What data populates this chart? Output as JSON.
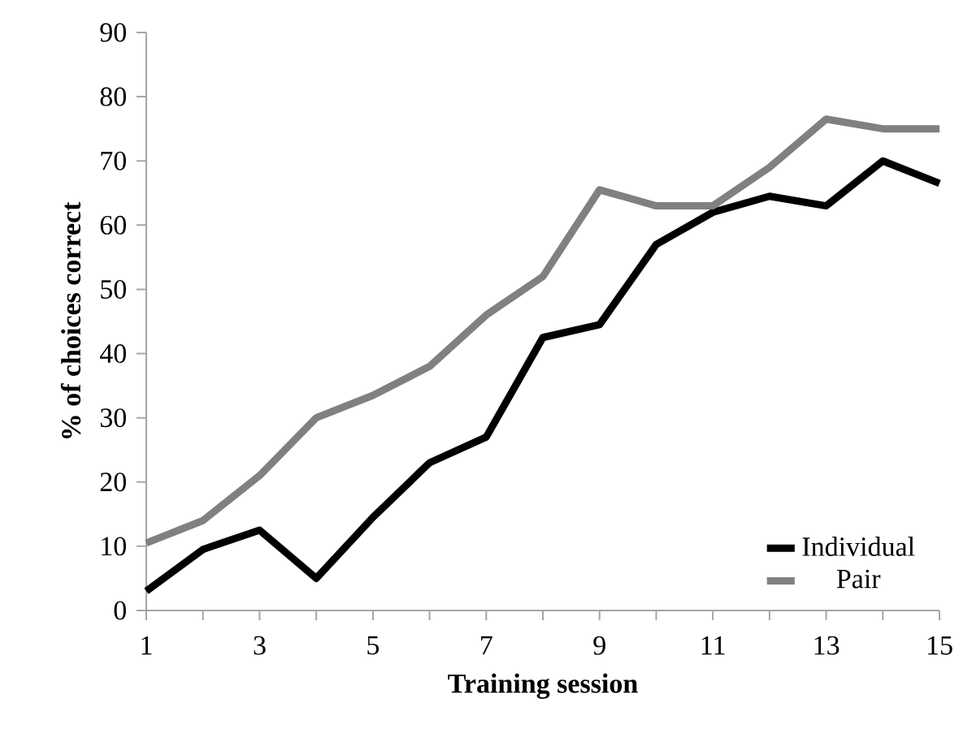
{
  "chart_data": {
    "type": "line",
    "xlabel": "Training session",
    "ylabel": "% of choices correct",
    "x": [
      1,
      2,
      3,
      4,
      5,
      6,
      7,
      8,
      9,
      10,
      11,
      12,
      13,
      14,
      15
    ],
    "series": [
      {
        "name": "Individual",
        "color": "#000000",
        "values": [
          3,
          9.5,
          12.5,
          5,
          14.5,
          23,
          27,
          42.5,
          44.5,
          57,
          62,
          64.5,
          63,
          70,
          66.5
        ]
      },
      {
        "name": "Pair",
        "color": "#808080",
        "values": [
          10.5,
          14,
          21,
          30,
          33.5,
          38,
          46,
          52,
          65.5,
          63,
          63,
          69,
          76.5,
          75,
          75
        ]
      }
    ],
    "xlim": [
      1,
      15
    ],
    "ylim": [
      0,
      90
    ],
    "xticks": [
      1,
      {
        "value": 2,
        "label": null
      },
      3,
      {
        "value": 4,
        "label": null
      },
      5,
      {
        "value": 6,
        "label": null
      },
      7,
      {
        "value": 8,
        "label": null
      },
      9,
      {
        "value": 10,
        "label": null
      },
      11,
      {
        "value": 12,
        "label": null
      },
      13,
      {
        "value": 14,
        "label": null
      },
      15
    ],
    "yticks": [
      0,
      10,
      20,
      30,
      40,
      50,
      60,
      70,
      80,
      90
    ],
    "grid": false,
    "legend": "bottom right",
    "marker": "none",
    "line_style": "solid"
  }
}
